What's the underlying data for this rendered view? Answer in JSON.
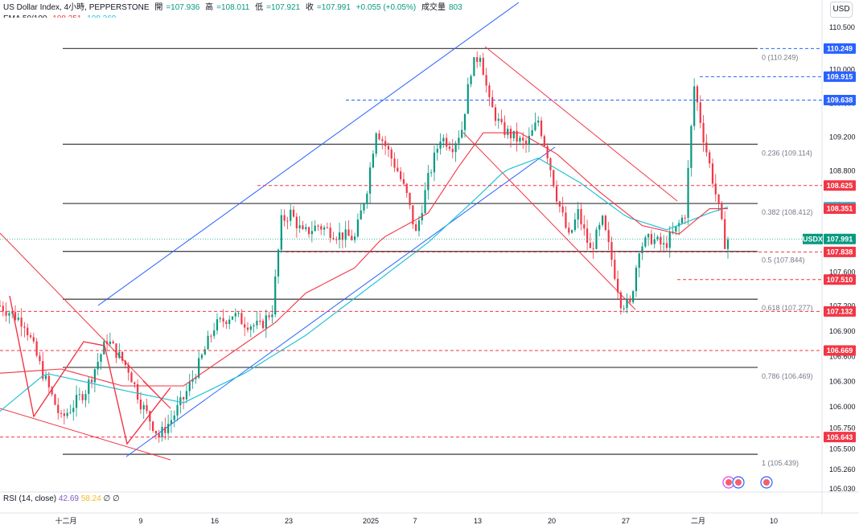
{
  "header": {
    "symbol": "US Dollar Index, 4小時, PEPPERSTONE",
    "open_label": "開",
    "open": "=107.936",
    "high_label": "高",
    "high": "=108.011",
    "low_label": "低",
    "low": "=107.921",
    "close_label": "收",
    "close": "=107.991",
    "change": "+0.055 (+0.05%)",
    "volume_label": "成交量",
    "volume": "803",
    "ema_label": "EMA 50/100",
    "ema50": "108.351",
    "ema100": "108.369"
  },
  "currency_button": "USD",
  "rsi": {
    "label": "RSI (14, close)",
    "v1": "42.69",
    "v2": "58.24",
    "v3": "∅",
    "v4": "∅"
  },
  "colors": {
    "up": "#089981",
    "down": "#f23645",
    "ema50": "#f23645",
    "ema100": "#22c2d6",
    "channel": "#2962ff",
    "fib": "#4a4a4a"
  },
  "chart_data": {
    "type": "candlestick",
    "instrument": "USDX",
    "timeframe": "4小時",
    "ylim": [
      105.03,
      110.5
    ],
    "x_ticks": [
      "十二月",
      "9",
      "16",
      "23",
      "2025",
      "7",
      "13",
      "20",
      "27",
      "二月",
      "10"
    ],
    "y_ticks": [
      "110.500",
      "110.000",
      "109.600",
      "109.200",
      "108.800",
      "108.400",
      "108.000",
      "107.600",
      "107.200",
      "106.900",
      "106.600",
      "106.300",
      "106.000",
      "105.750",
      "105.500",
      "105.260",
      "105.030"
    ],
    "fib_levels": [
      {
        "label": "0 (110.249)",
        "value": 110.249
      },
      {
        "label": "0.236 (109.114)",
        "value": 109.114
      },
      {
        "label": "0.382 (108.412)",
        "value": 108.412
      },
      {
        "label": "0.5 (107.844)",
        "value": 107.844
      },
      {
        "label": "0.618 (107.277)",
        "value": 107.277
      },
      {
        "label": "0.786 (106.469)",
        "value": 106.469
      },
      {
        "label": "1 (105.439)",
        "value": 105.439
      }
    ],
    "price_tags": [
      {
        "text": "110.249",
        "value": 110.249,
        "color": "#2962ff"
      },
      {
        "text": "109.915",
        "value": 109.915,
        "color": "#2962ff"
      },
      {
        "text": "109.638",
        "value": 109.638,
        "color": "#2962ff"
      },
      {
        "text": "108.625",
        "value": 108.625,
        "color": "#f23645"
      },
      {
        "text": "108.369",
        "value": 108.369,
        "color": "#22c2d6"
      },
      {
        "text": "108.351",
        "value": 108.351,
        "color": "#f23645"
      },
      {
        "text": "107.991",
        "value": 107.991,
        "color": "#089981"
      },
      {
        "text": "107.838",
        "value": 107.838,
        "color": "#f23645"
      },
      {
        "text": "107.510",
        "value": 107.51,
        "color": "#f23645"
      },
      {
        "text": "107.132",
        "value": 107.132,
        "color": "#f23645"
      },
      {
        "text": "106.669",
        "value": 106.669,
        "color": "#f23645"
      },
      {
        "text": "105.643",
        "value": 105.643,
        "color": "#f23645"
      }
    ],
    "symbol_tag": "USDX",
    "close_path": [
      [
        0,
        107.2
      ],
      [
        8,
        107.0
      ],
      [
        14,
        106.4
      ],
      [
        20,
        105.85
      ],
      [
        28,
        106.2
      ],
      [
        35,
        106.8
      ],
      [
        42,
        106.45
      ],
      [
        46,
        106.05
      ],
      [
        52,
        105.65
      ],
      [
        56,
        105.85
      ],
      [
        60,
        106.1
      ],
      [
        65,
        106.5
      ],
      [
        70,
        106.95
      ],
      [
        76,
        107.1
      ],
      [
        80,
        107.0
      ],
      [
        85,
        106.95
      ],
      [
        89,
        107.15
      ],
      [
        92,
        108.2
      ],
      [
        95,
        108.3
      ],
      [
        99,
        108.05
      ],
      [
        104,
        108.15
      ],
      [
        110,
        108.05
      ],
      [
        116,
        108.0
      ],
      [
        120,
        108.6
      ],
      [
        123,
        109.3
      ],
      [
        126,
        109.1
      ],
      [
        130,
        108.8
      ],
      [
        133,
        108.5
      ],
      [
        136,
        108.05
      ],
      [
        140,
        108.7
      ],
      [
        144,
        109.2
      ],
      [
        148,
        109.1
      ],
      [
        151,
        109.3
      ],
      [
        154,
        110.0
      ],
      [
        157,
        110.2
      ],
      [
        160,
        109.6
      ],
      [
        164,
        109.3
      ],
      [
        168,
        109.2
      ],
      [
        172,
        109.1
      ],
      [
        176,
        109.4
      ],
      [
        179,
        109.0
      ],
      [
        182,
        108.5
      ],
      [
        186,
        108.0
      ],
      [
        189,
        108.3
      ],
      [
        193,
        107.85
      ],
      [
        197,
        108.2
      ],
      [
        200,
        107.75
      ],
      [
        203,
        107.25
      ],
      [
        206,
        107.2
      ],
      [
        209,
        107.9
      ],
      [
        213,
        108.0
      ],
      [
        217,
        107.9
      ],
      [
        221,
        108.1
      ],
      [
        224,
        108.3
      ],
      [
        227,
        109.8
      ],
      [
        230,
        109.2
      ],
      [
        233,
        108.7
      ],
      [
        235,
        108.35
      ],
      [
        237,
        107.95
      ],
      [
        238,
        107.99
      ]
    ],
    "ema50_path": [
      [
        0,
        106.4
      ],
      [
        20,
        106.45
      ],
      [
        40,
        106.25
      ],
      [
        60,
        106.25
      ],
      [
        76,
        106.65
      ],
      [
        90,
        107.0
      ],
      [
        100,
        107.35
      ],
      [
        116,
        107.65
      ],
      [
        125,
        108.0
      ],
      [
        140,
        108.3
      ],
      [
        150,
        108.85
      ],
      [
        158,
        109.25
      ],
      [
        170,
        109.25
      ],
      [
        182,
        109.0
      ],
      [
        196,
        108.55
      ],
      [
        210,
        108.15
      ],
      [
        222,
        108.05
      ],
      [
        232,
        108.35
      ],
      [
        238,
        108.35
      ]
    ],
    "ema100_path": [
      [
        0,
        105.95
      ],
      [
        15,
        106.4
      ],
      [
        40,
        106.2
      ],
      [
        60,
        106.05
      ],
      [
        80,
        106.4
      ],
      [
        100,
        106.85
      ],
      [
        120,
        107.4
      ],
      [
        140,
        107.95
      ],
      [
        155,
        108.45
      ],
      [
        165,
        108.8
      ],
      [
        176,
        108.95
      ],
      [
        190,
        108.65
      ],
      [
        205,
        108.25
      ],
      [
        218,
        108.1
      ],
      [
        232,
        108.3
      ],
      [
        238,
        108.37
      ]
    ]
  }
}
